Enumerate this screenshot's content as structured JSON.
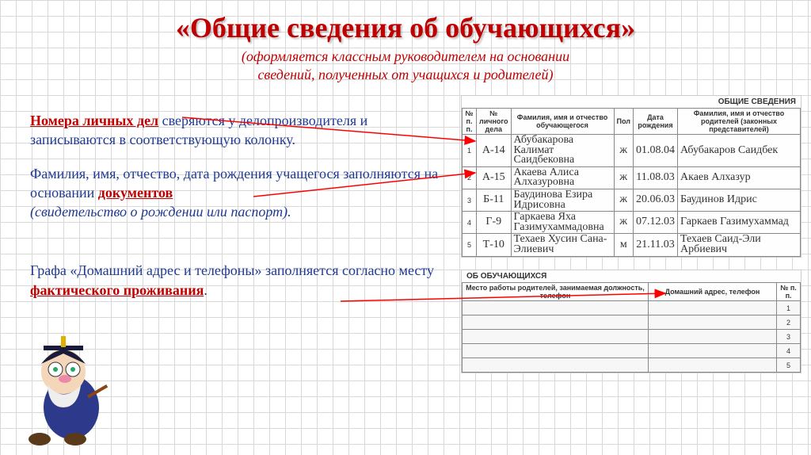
{
  "title": "«Общие сведения об обучающихся»",
  "subtitle_line1": "(оформляется классным руководителем на основании",
  "subtitle_line2": "сведений, полученных от учащихся и родителей)",
  "para1": {
    "lead": "Номера личных дел",
    "rest": " сверяются у делопроизводителя и записываются в соответствующую колонку."
  },
  "para2": {
    "text_a": "Фамилия, имя, отчество, дата рождения  учащегося заполняются на основании ",
    "bold": "документов",
    "italic": "(свидетельство о рождении или паспорт)."
  },
  "para3": {
    "text_a": "Графа «Домашний адрес и телефоны» заполняется согласно месту ",
    "bold": "фактического проживания",
    "dot": "."
  },
  "form1": {
    "heading": "ОБЩИЕ СВЕДЕНИЯ",
    "cols": {
      "n": "№ п. п.",
      "ld": "№ личного дела",
      "fio": "Фамилия, имя и отчество обучающегося",
      "pol": "Пол",
      "dr": "Дата рождения",
      "parents": "Фамилия, имя и отчество родителей (законных представителей)"
    },
    "rows": [
      {
        "n": "1",
        "ld": "А-14",
        "fio": "Абубакарова Калимат Саидбековна",
        "pol": "ж",
        "dr": "01.08.04",
        "par": "Абубакаров Саидбек"
      },
      {
        "n": "2",
        "ld": "А-15",
        "fio": "Акаева Алиса Алхазуровна",
        "pol": "ж",
        "dr": "11.08.03",
        "par": "Акаев Алхазур"
      },
      {
        "n": "3",
        "ld": "Б-11",
        "fio": "Баудинова Езира Идрисовна",
        "pol": "ж",
        "dr": "20.06.03",
        "par": "Баудинов Идрис"
      },
      {
        "n": "4",
        "ld": "Г-9",
        "fio": "Гаркаева Яха Газимухаммадовна",
        "pol": "ж",
        "dr": "07.12.03",
        "par": "Гаркаев Газимухаммад"
      },
      {
        "n": "5",
        "ld": "Т-10",
        "fio": "Техаев Хусин Сана-Элиевич",
        "pol": "м",
        "dr": "21.11.03",
        "par": "Техаев Саид-Эли Арбиевич"
      }
    ]
  },
  "form2": {
    "heading": "ОБ ОБУЧАЮЩИХСЯ",
    "col1": "Место работы родителей, занимаемая должность, телефон",
    "col2": "Домашний адрес, телефон",
    "col3": "№ п. п.",
    "rowcount": 5
  },
  "colors": {
    "title": "#c00000",
    "body": "#1f3a93",
    "arrow": "#ff0000"
  }
}
